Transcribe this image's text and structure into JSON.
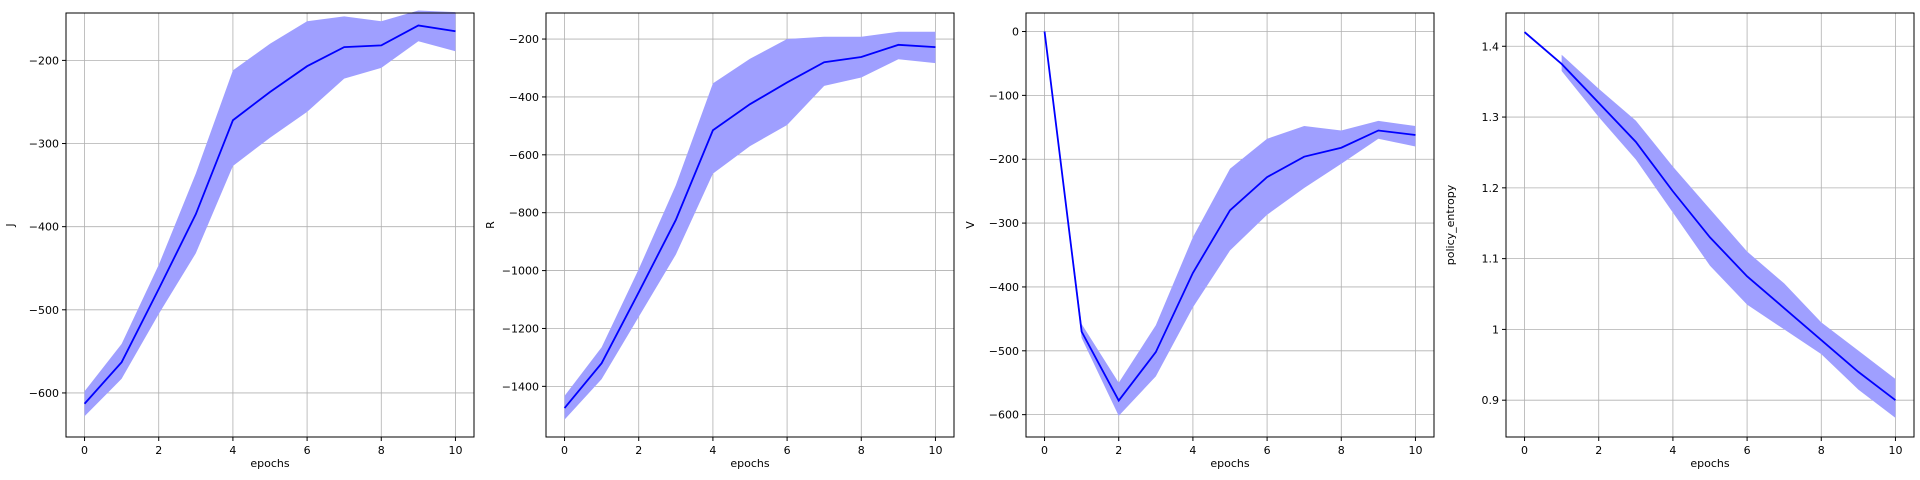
{
  "figure": {
    "colors": {
      "line": "#0000ff",
      "band": "#9f9fff",
      "grid": "#b0b0b0",
      "axis": "#000000"
    }
  },
  "chart_data": [
    {
      "type": "line",
      "xlabel": "epochs",
      "ylabel": "J",
      "xlim": [
        -0.5,
        10.5
      ],
      "ylim": [
        -653,
        -143
      ],
      "xticks": [
        0,
        2,
        4,
        6,
        8,
        10
      ],
      "yticks": [
        -600,
        -500,
        -400,
        -300,
        -200
      ],
      "grid": true,
      "x": [
        0,
        1,
        2,
        3,
        4,
        5,
        6,
        7,
        8,
        9,
        10
      ],
      "series": [
        {
          "values": [
            -613,
            -563,
            -475,
            -385,
            -272,
            -238,
            -207,
            -184,
            -182,
            -158,
            -165
          ],
          "lower": [
            -628,
            -583,
            -505,
            -432,
            -327,
            -293,
            -262,
            -222,
            -209,
            -177,
            -189
          ],
          "upper": [
            -598,
            -541,
            -446,
            -336,
            -212,
            -180,
            -153,
            -147,
            -153,
            -140,
            -142
          ]
        }
      ]
    },
    {
      "type": "line",
      "xlabel": "epochs",
      "ylabel": "R",
      "xlim": [
        -0.5,
        10.5
      ],
      "ylim": [
        -1575,
        -110
      ],
      "xticks": [
        0,
        2,
        4,
        6,
        8,
        10
      ],
      "yticks": [
        -1400,
        -1200,
        -1000,
        -800,
        -600,
        -400,
        -200
      ],
      "grid": true,
      "x": [
        0,
        1,
        2,
        3,
        4,
        5,
        6,
        7,
        8,
        9,
        10
      ],
      "series": [
        {
          "values": [
            -1475,
            -1320,
            -1075,
            -825,
            -515,
            -425,
            -350,
            -280,
            -262,
            -220,
            -228
          ],
          "lower": [
            -1515,
            -1375,
            -1160,
            -945,
            -665,
            -570,
            -497,
            -362,
            -333,
            -270,
            -283
          ],
          "upper": [
            -1433,
            -1265,
            -995,
            -705,
            -353,
            -268,
            -200,
            -192,
            -192,
            -175,
            -175
          ]
        }
      ]
    },
    {
      "type": "line",
      "xlabel": "epochs",
      "ylabel": "V",
      "xlim": [
        -0.5,
        10.5
      ],
      "ylim": [
        -635,
        29
      ],
      "xticks": [
        0,
        2,
        4,
        6,
        8,
        10
      ],
      "yticks": [
        -600,
        -500,
        -400,
        -300,
        -200,
        -100,
        0
      ],
      "grid": true,
      "x": [
        0,
        1,
        2,
        3,
        4,
        5,
        6,
        7,
        8,
        9,
        10
      ],
      "series": [
        {
          "values": [
            0,
            -470,
            -578,
            -502,
            -378,
            -280,
            -228,
            -196,
            -182,
            -155,
            -162
          ],
          "lower": [
            0,
            -480,
            -602,
            -540,
            -432,
            -343,
            -287,
            -245,
            -207,
            -168,
            -180
          ],
          "upper": [
            0,
            -458,
            -550,
            -460,
            -322,
            -215,
            -168,
            -148,
            -155,
            -140,
            -148
          ]
        }
      ]
    },
    {
      "type": "line",
      "xlabel": "epochs",
      "ylabel": "policy_entropy",
      "xlim": [
        -0.5,
        10.5
      ],
      "ylim": [
        0.848,
        1.447
      ],
      "xticks": [
        0,
        2,
        4,
        6,
        8,
        10
      ],
      "yticks": [
        0.9,
        1.0,
        1.1,
        1.2,
        1.3,
        1.4
      ],
      "grid": true,
      "x": [
        0,
        1,
        2,
        3,
        4,
        5,
        6,
        7,
        8,
        9,
        10
      ],
      "series": [
        {
          "values": [
            1.42,
            1.375,
            1.32,
            1.265,
            1.195,
            1.13,
            1.075,
            1.03,
            0.985,
            0.94,
            0.9
          ],
          "lower": [
            null,
            1.365,
            1.3,
            1.24,
            1.165,
            1.09,
            1.035,
            1.0,
            0.965,
            0.915,
            0.875
          ],
          "upper": [
            null,
            1.388,
            1.34,
            1.295,
            1.23,
            1.17,
            1.11,
            1.065,
            1.01,
            0.97,
            0.93
          ]
        }
      ]
    }
  ]
}
